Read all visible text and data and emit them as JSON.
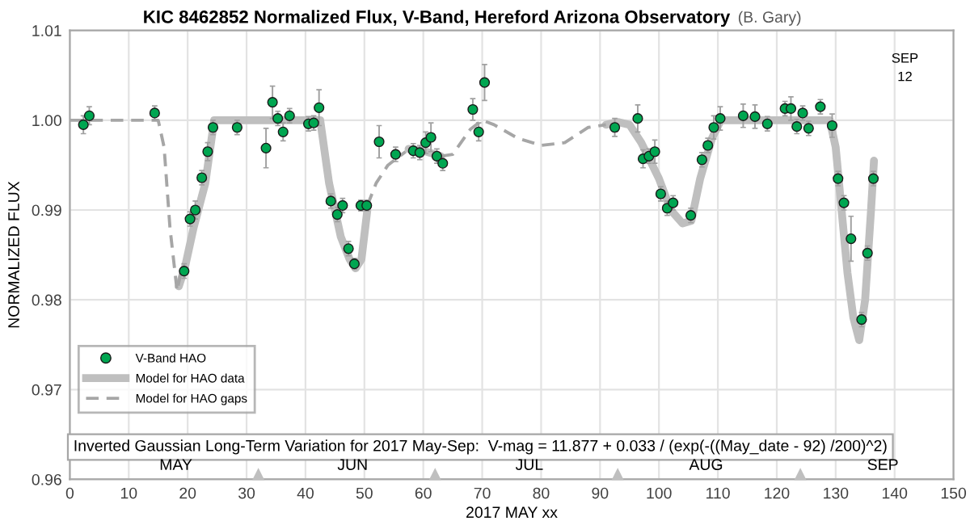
{
  "chart_data": {
    "type": "scatter",
    "title": "KIC 8462852 Normalized Flux, V-Band, Hereford Arizona Observatory",
    "subtitle": "(B. Gary)",
    "xlabel": "2017 MAY xx",
    "ylabel": "NORMALIZED FLUX",
    "xlim": [
      0,
      150
    ],
    "xticks": [
      0,
      10,
      20,
      30,
      40,
      50,
      60,
      70,
      80,
      90,
      100,
      110,
      120,
      130,
      140,
      150
    ],
    "ylim": [
      0.96,
      1.01
    ],
    "yticks": [
      0.96,
      0.97,
      0.98,
      0.99,
      {
        "value": 1.0,
        "label": "1.00"
      },
      1.01
    ],
    "grid": true,
    "legend": "bottom left",
    "series": [
      {
        "name": "V-Band HAO",
        "type": "scatter",
        "color": "#00a651",
        "marker": "circle",
        "x": [
          2.3,
          3.3,
          14.4,
          19.4,
          20.4,
          21.3,
          22.4,
          23.4,
          24.3,
          28.4,
          33.3,
          34.4,
          35.3,
          36.2,
          37.3,
          40.5,
          41.4,
          42.3,
          44.3,
          45.4,
          46.3,
          47.3,
          48.3,
          49.4,
          50.4,
          52.5,
          55.3,
          58.3,
          59.4,
          60.4,
          61.3,
          62.3,
          63.3,
          68.4,
          69.4,
          70.4,
          92.5,
          96.4,
          97.3,
          98.3,
          99.3,
          100.3,
          101.4,
          102.4,
          105.4,
          107.3,
          108.3,
          109.3,
          110.4,
          114.3,
          116.3,
          118.4,
          121.4,
          122.4,
          123.4,
          124.4,
          125.4,
          127.4,
          129.4,
          130.4,
          131.4,
          132.6,
          134.4,
          135.4,
          136.4
        ],
        "values": [
          0.9995,
          1.0005,
          1.0008,
          0.9832,
          0.989,
          0.99,
          0.9936,
          0.9965,
          0.9992,
          0.9992,
          0.9969,
          1.002,
          1.0002,
          0.9987,
          1.0005,
          0.9996,
          0.9997,
          1.0014,
          0.991,
          0.9895,
          0.9905,
          0.9857,
          0.984,
          0.9905,
          0.9905,
          0.9976,
          0.9962,
          0.9966,
          0.9964,
          0.9975,
          0.9981,
          0.996,
          0.9952,
          1.0012,
          0.9987,
          1.0042,
          0.9992,
          1.0002,
          0.9957,
          0.996,
          0.9965,
          0.9918,
          0.9902,
          0.9908,
          0.9894,
          0.9956,
          0.9972,
          0.9992,
          1.0002,
          1.0005,
          1.0004,
          0.9996,
          1.0013,
          1.0013,
          0.9993,
          1.0008,
          0.9991,
          1.0015,
          0.9994,
          0.9935,
          0.9908,
          0.9868,
          0.9778,
          0.9852,
          0.9935
        ],
        "errors": [
          0.001,
          0.001,
          0.0008,
          0.0008,
          0.0008,
          0.001,
          0.0008,
          0.001,
          0.0008,
          0.0008,
          0.0022,
          0.0018,
          0.0008,
          0.001,
          0.0008,
          0.0008,
          0.0008,
          0.002,
          0.0008,
          0.0008,
          0.0008,
          0.0008,
          0.0006,
          0.0006,
          0.0006,
          0.0018,
          0.0008,
          0.0008,
          0.0008,
          0.0012,
          0.0016,
          0.0008,
          0.0008,
          0.0012,
          0.001,
          0.002,
          0.001,
          0.0015,
          0.001,
          0.0008,
          0.0013,
          0.0008,
          0.0008,
          0.0008,
          0.0008,
          0.0008,
          0.0008,
          0.0013,
          0.0013,
          0.0013,
          0.0013,
          0.0008,
          0.0008,
          0.0013,
          0.0008,
          0.0008,
          0.0008,
          0.0008,
          0.0013,
          0.0008,
          0.0008,
          0.0025,
          0.0008,
          0.0008,
          0.0008
        ]
      },
      {
        "name": "Model for HAO data",
        "type": "line",
        "color": "#bfbfbf",
        "line_style": "solid",
        "x": [
          18.5,
          19.5,
          21,
          23,
          24.5,
          30,
          40,
          42.5,
          44,
          46,
          47.5,
          48.5,
          49.5,
          50.5,
          54,
          57.5,
          60,
          63,
          80,
          91,
          93,
          95,
          97,
          100,
          102,
          104,
          105.5,
          107,
          109,
          110.5,
          120,
          129,
          130,
          131,
          132,
          133,
          134,
          135,
          136,
          136.5
        ],
        "values": [
          0.9815,
          0.9835,
          0.988,
          0.993,
          1.0,
          1.0,
          1.0,
          1.0,
          0.993,
          0.987,
          0.9845,
          0.9835,
          0.9845,
          0.99,
          null,
          0.9968,
          0.9966,
          0.996,
          null,
          0.9995,
          0.9998,
          0.9995,
          0.9975,
          0.9935,
          0.99,
          0.9885,
          0.9888,
          0.9935,
          0.998,
          1.0,
          1.0,
          1.0,
          0.997,
          0.99,
          0.983,
          0.978,
          0.9755,
          0.98,
          0.99,
          0.9955
        ]
      },
      {
        "name": "Model for HAO gaps",
        "type": "line",
        "color": "#a6a6a6",
        "line_style": "dashed",
        "x": [
          0,
          15,
          16,
          17,
          18.2,
          19,
          30,
          50.5,
          52,
          54,
          57,
          60,
          63,
          65,
          68,
          70,
          72,
          76,
          80,
          84,
          88,
          91
        ],
        "values": [
          1.0,
          1.0,
          0.997,
          0.988,
          0.981,
          0.9835,
          null,
          0.9905,
          0.993,
          0.995,
          0.9965,
          null,
          0.996,
          0.9962,
          0.999,
          1.0,
          0.9995,
          0.998,
          0.9972,
          0.9975,
          0.9992,
          0.9995
        ]
      },
      {
        "type": "scatter",
        "color": "#bfbfbf",
        "marker": "triangle",
        "x": [
          32,
          62,
          93,
          124
        ],
        "values": [
          0.9606,
          0.9606,
          0.9606,
          0.9606
        ]
      }
    ],
    "annotations": [
      "Inverted Gaussian Long-Term Variation for 2017 May-Sep:  V-mag = 11.877 + 0.033 / (exp(-((May_date - 92) /200)^2)",
      "MAY",
      "JUN",
      "JUL",
      "AUG",
      "SEP",
      "SEP\n12"
    ]
  }
}
